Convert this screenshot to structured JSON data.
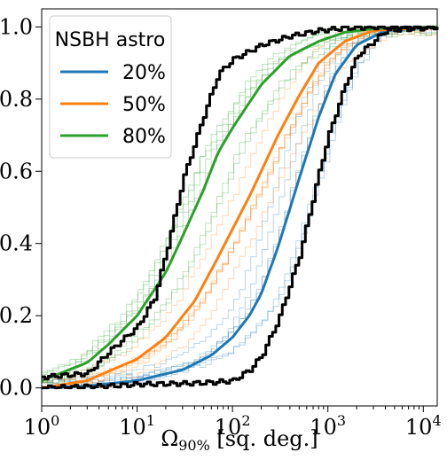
{
  "chart_data": {
    "type": "line",
    "title": "",
    "xlabel": "Ω90% [sq. deg.]",
    "xlabel_parts": {
      "symbol": "Ω",
      "subscript": "90%",
      "unit": " [sq. deg.]"
    },
    "ylabel": "",
    "x_scale": "log",
    "xlim": [
      1,
      14000
    ],
    "ylim": [
      -0.05,
      1.05
    ],
    "x_ticks": [
      {
        "value": 1,
        "base": "10",
        "exp": "0"
      },
      {
        "value": 10,
        "base": "10",
        "exp": "1"
      },
      {
        "value": 100,
        "base": "10",
        "exp": "2"
      },
      {
        "value": 1000,
        "base": "10",
        "exp": "3"
      },
      {
        "value": 10000,
        "base": "10",
        "exp": "4"
      }
    ],
    "y_ticks": [
      {
        "value": 0.0,
        "label": "0.0"
      },
      {
        "value": 0.2,
        "label": "0.2"
      },
      {
        "value": 0.4,
        "label": "0.4"
      },
      {
        "value": 0.6,
        "label": "0.6"
      },
      {
        "value": 0.8,
        "label": "0.8"
      },
      {
        "value": 1.0,
        "label": "1.0"
      }
    ],
    "grid": false,
    "legend": {
      "title": "NSBH astro",
      "placement": "top-left",
      "entries": [
        {
          "label": "20%",
          "color": "#1f77b4"
        },
        {
          "label": "50%",
          "color": "#ff7f0e"
        },
        {
          "label": "80%",
          "color": "#2ca02c"
        }
      ]
    },
    "series": [
      {
        "name": "20%",
        "color": "#1f77b4",
        "x": [
          1,
          3,
          10,
          30,
          60,
          100,
          150,
          200,
          300,
          500,
          800,
          1200,
          2000,
          4000,
          14000
        ],
        "y": [
          0.0,
          0.005,
          0.02,
          0.05,
          0.09,
          0.14,
          0.2,
          0.26,
          0.39,
          0.58,
          0.75,
          0.87,
          0.95,
          0.99,
          1.0
        ]
      },
      {
        "name": "50%",
        "color": "#ff7f0e",
        "x": [
          1,
          3,
          10,
          20,
          40,
          70,
          100,
          150,
          200,
          300,
          500,
          800,
          1500,
          3000,
          14000
        ],
        "y": [
          0.0,
          0.02,
          0.08,
          0.14,
          0.24,
          0.36,
          0.44,
          0.53,
          0.6,
          0.7,
          0.81,
          0.9,
          0.96,
          0.99,
          1.0
        ]
      },
      {
        "name": "80%",
        "color": "#2ca02c",
        "x": [
          1,
          3,
          5,
          10,
          20,
          30,
          50,
          70,
          100,
          200,
          400,
          800,
          1500,
          3000,
          14000
        ],
        "y": [
          0.02,
          0.07,
          0.12,
          0.2,
          0.32,
          0.42,
          0.55,
          0.65,
          0.72,
          0.84,
          0.92,
          0.96,
          0.985,
          0.995,
          1.0
        ]
      },
      {
        "name": "",
        "color": "#000000",
        "x": [
          1,
          3,
          5,
          10,
          15,
          20,
          30,
          50,
          70,
          100,
          200,
          400,
          800,
          1500,
          3000,
          14000
        ],
        "y": [
          0.03,
          0.04,
          0.1,
          0.17,
          0.25,
          0.38,
          0.58,
          0.76,
          0.87,
          0.91,
          0.95,
          0.975,
          0.99,
          0.997,
          1.0,
          1.0
        ]
      },
      {
        "name": "",
        "color": "#000000",
        "x": [
          1,
          5,
          10,
          30,
          60,
          100,
          150,
          200,
          300,
          500,
          800,
          1000,
          1500,
          2000,
          4000,
          14000
        ],
        "y": [
          0.0,
          0.005,
          0.01,
          0.012,
          0.015,
          0.02,
          0.05,
          0.09,
          0.19,
          0.37,
          0.6,
          0.7,
          0.84,
          0.92,
          0.99,
          1.0
        ]
      }
    ]
  }
}
